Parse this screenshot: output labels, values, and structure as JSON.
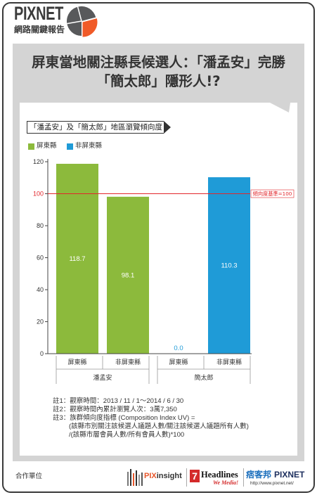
{
  "header": {
    "brand": "PIXNET",
    "report_name": "網路關鍵報告",
    "icon": "pie-chart-icon",
    "colors": {
      "text": "#3b3b3b",
      "icon_base": "#58595b",
      "accent": "#f05a28"
    }
  },
  "headline": {
    "line1": "屏東當地關注縣長候選人：「潘孟安」完勝",
    "line2": "「簡太郎」隱形人!?"
  },
  "chart_data": {
    "type": "bar",
    "title": "「潘孟安」及「簡太郎」地區瀏覽傾向度",
    "ylim": [
      0,
      120
    ],
    "yticks": [
      0,
      20,
      40,
      60,
      80,
      100,
      120
    ],
    "grid": false,
    "legend_position": "top-left",
    "legend": [
      {
        "label": "屏東縣",
        "color": "#8cba3c"
      },
      {
        "label": "非屏東縣",
        "color": "#1f9bd7"
      }
    ],
    "groups": [
      {
        "name": "潘孟安",
        "bars": [
          {
            "category": "屏東縣",
            "value": 118.7,
            "color": "#8cba3c"
          },
          {
            "category": "非屏東縣",
            "value": 98.1,
            "color": "#8cba3c"
          }
        ]
      },
      {
        "name": "簡太郎",
        "bars": [
          {
            "category": "屏東縣",
            "value": 0.0,
            "color": "#1f9bd7"
          },
          {
            "category": "非屏東縣",
            "value": 110.3,
            "color": "#1f9bd7"
          }
        ]
      }
    ],
    "reference_line": {
      "value": 100,
      "label": "傾向度基準=100",
      "color": "#e2262b"
    }
  },
  "notes": [
    "註1：觀察時間：2013 / 11 / 1～2014 / 6 / 30",
    "註2：觀察時間內累計瀏覽人次：3萬7,350",
    "註3：族群傾向度指標 (Composition Index UV) =",
    "(該縣市別關注該候選人議題人數/關注該候選人議題所有人數)",
    "/(該縣市層會員人數/所有會員人數)*100"
  ],
  "footer": {
    "partner_label": "合作單位",
    "pixinsight": {
      "prefix": "PIX",
      "suffix": "insight",
      "icon": "bar-stripes-icon"
    },
    "headlines": {
      "badge": "7",
      "name": "Headlines",
      "tagline": "We Media!"
    },
    "pixnet": {
      "chinese": "痞客邦",
      "name": "PIXNET",
      "url": "http://www.pixnet.net/"
    }
  }
}
